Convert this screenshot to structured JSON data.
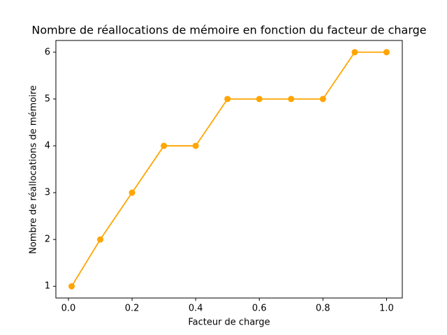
{
  "chart_data": {
    "type": "line",
    "title": "Nombre de réallocations de mémoire en fonction du facteur de charge",
    "x_label": "Facteur de charge",
    "y_label": "Nombre de réallocations de mémoire",
    "x": [
      0.01,
      0.1,
      0.2,
      0.3,
      0.4,
      0.5,
      0.6,
      0.7,
      0.8,
      0.9,
      1.0
    ],
    "series": [
      {
        "color": "#ffa500",
        "values": [
          1,
          2,
          3,
          4,
          4,
          5,
          5,
          5,
          5,
          6,
          6
        ]
      }
    ],
    "xlim": [
      -0.0395,
      1.0495
    ],
    "ylim": [
      0.75,
      6.25
    ],
    "xticks": [
      {
        "value": 0,
        "label": "0.0"
      },
      0.2,
      0.4,
      0.6,
      0.8,
      {
        "value": 1,
        "label": "1.0"
      }
    ],
    "yticks": [
      1,
      2,
      3,
      4,
      5,
      6
    ],
    "grid": false,
    "marker": "circle"
  }
}
